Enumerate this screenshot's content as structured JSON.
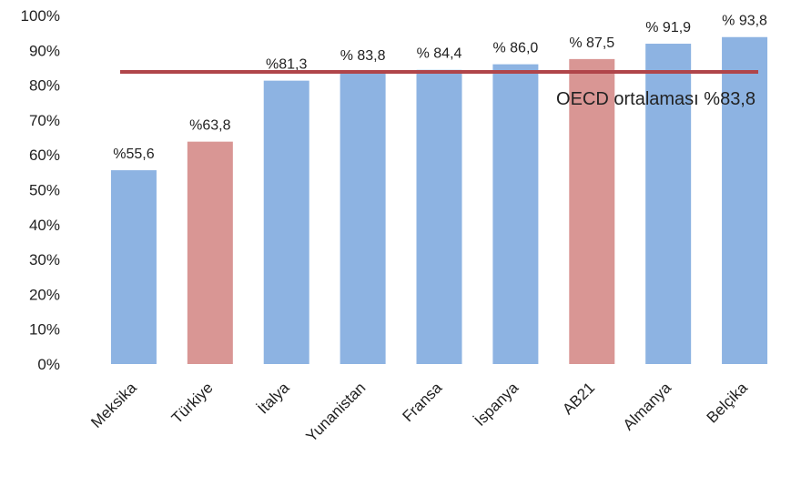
{
  "chart_data": {
    "type": "bar",
    "categories": [
      "Meksika",
      "Türkiye",
      "İtalya",
      "Yunanistan",
      "Fransa",
      "İspanya",
      "AB21",
      "Almanya",
      "Belçika"
    ],
    "values": [
      55.6,
      63.8,
      81.3,
      83.8,
      84.4,
      86.0,
      87.5,
      91.9,
      93.8
    ],
    "data_labels": [
      "%55,6",
      "%63,8",
      "%81,3",
      "% 83,8",
      "% 84,4",
      "% 86,0",
      "% 87,5",
      "% 91,9",
      "% 93,8"
    ],
    "highlighted": [
      "Türkiye",
      "AB21"
    ],
    "colors": {
      "default": "#8DB3E2",
      "highlight": "#D99694",
      "reference_line": "#B0454A"
    },
    "title": "",
    "xlabel": "",
    "ylabel": "",
    "ylim": [
      0,
      100
    ],
    "yticks": [
      "0%",
      "10%",
      "20%",
      "30%",
      "40%",
      "50%",
      "60%",
      "70%",
      "80%",
      "90%",
      "100%"
    ],
    "grid": false,
    "reference_line": {
      "value": 83.8,
      "label": "OECD ortalaması %83,8"
    }
  }
}
